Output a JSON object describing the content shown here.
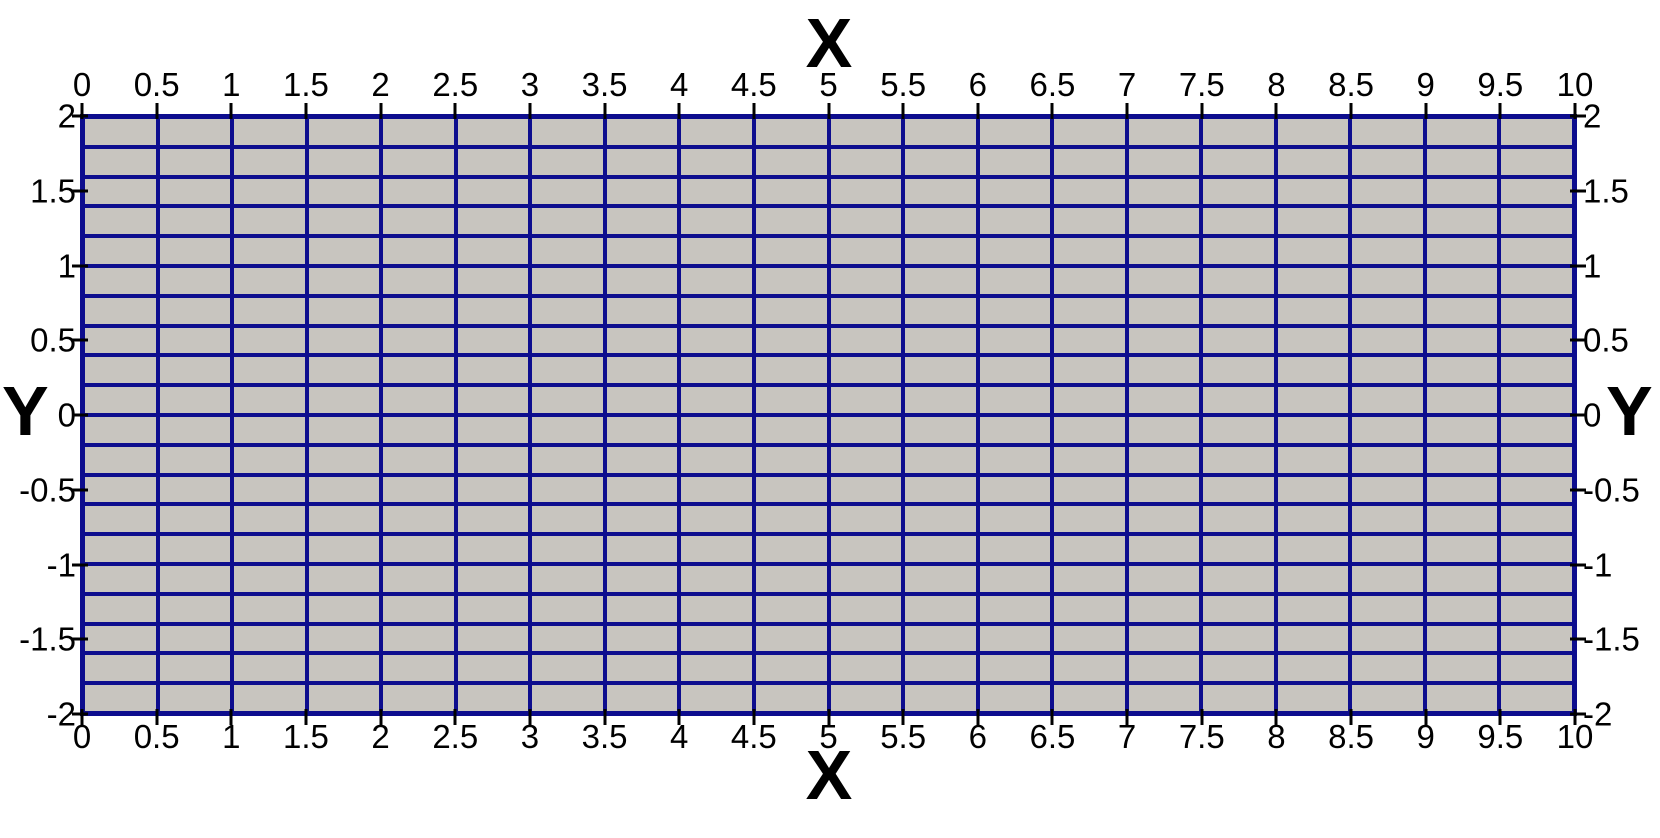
{
  "figure": {
    "background": "#ffffff",
    "text_color": "#000000",
    "tick_color": "#000000",
    "mesh": {
      "columns": 20,
      "rows": 20,
      "x_min": 0,
      "x_max": 10,
      "y_min": -2,
      "y_max": 2,
      "cell_color": "#c8c5bf",
      "line_color": "#0d0d8e"
    },
    "axes": {
      "x": {
        "title": "X",
        "ticks": [
          "0",
          "0.5",
          "1",
          "1.5",
          "2",
          "2.5",
          "3",
          "3.5",
          "4",
          "4.5",
          "5",
          "5.5",
          "6",
          "6.5",
          "7",
          "7.5",
          "8",
          "8.5",
          "9",
          "9.5",
          "10"
        ]
      },
      "y": {
        "title": "Y",
        "ticks": [
          "2",
          "1.5",
          "1",
          "0.5",
          "0",
          "-0.5",
          "-1",
          "-1.5",
          "-2"
        ]
      }
    }
  },
  "chart_data": {
    "type": "heatmap",
    "title": "",
    "xlabel": "X",
    "ylabel": "Y",
    "xlim": [
      0,
      10
    ],
    "ylim": [
      -2,
      2
    ],
    "x_tick_values": [
      0,
      0.5,
      1,
      1.5,
      2,
      2.5,
      3,
      3.5,
      4,
      4.5,
      5,
      5.5,
      6,
      6.5,
      7,
      7.5,
      8,
      8.5,
      9,
      9.5,
      10
    ],
    "y_tick_values": [
      2,
      1.5,
      1,
      0.5,
      0,
      -0.5,
      -1,
      -1.5,
      -2
    ],
    "grid": {
      "nx": 20,
      "ny": 20,
      "dx": 0.5,
      "dy": 0.2,
      "uniform_cells": true
    },
    "cell_color": "#c8c5bf",
    "edge_color": "#0d0d8e",
    "axis_labels_on_all_four_sides": true,
    "legend": "none",
    "gridlines": "mesh-edges"
  }
}
